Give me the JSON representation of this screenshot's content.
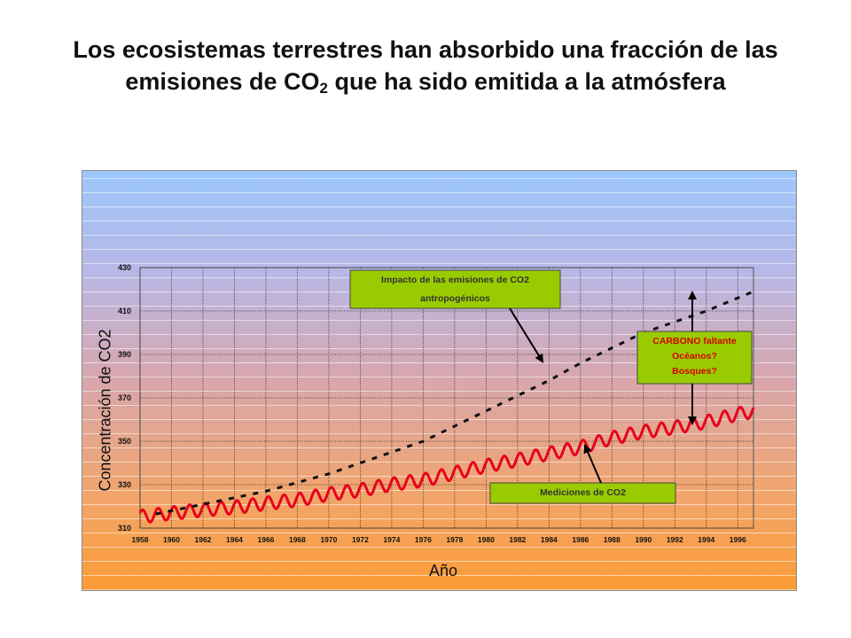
{
  "title": {
    "line1": "Los ecosistemas terrestres han absorbido una fracción de las",
    "line2_pre": "emisiones de CO",
    "line2_sub": "2",
    "line2_post": " que ha sido emitida a la atmósfera"
  },
  "chart_data": {
    "type": "line",
    "xlabel": "Año",
    "ylabel": "Concentración de CO2",
    "xlim": [
      1958,
      1997
    ],
    "ylim": [
      310,
      430
    ],
    "x_ticks": [
      "1958",
      "1960",
      "1962",
      "1964",
      "1966",
      "1968",
      "1970",
      "1972",
      "1974",
      "1976",
      "1978",
      "1980",
      "1982",
      "1984",
      "1986",
      "1988",
      "1990",
      "1992",
      "1994",
      "1996"
    ],
    "y_ticks": [
      "310",
      "330",
      "350",
      "370",
      "390",
      "410",
      "430"
    ],
    "grid": true,
    "series": [
      {
        "name": "Mediciones de CO2",
        "style": "solid",
        "color": "#e8001c",
        "seasonal_amplitude": 3,
        "x": [
          1958,
          1960,
          1962,
          1964,
          1966,
          1968,
          1970,
          1972,
          1974,
          1976,
          1978,
          1980,
          1982,
          1984,
          1986,
          1988,
          1990,
          1992,
          1994,
          1996,
          1997
        ],
        "values": [
          315.3,
          316.9,
          318.4,
          319.6,
          321.4,
          323.0,
          325.7,
          327.5,
          330.2,
          332.1,
          335.4,
          338.7,
          341.4,
          344.4,
          347.2,
          351.5,
          354.4,
          356.4,
          358.9,
          362.6,
          363.8
        ]
      },
      {
        "name": "Impacto de las emisiones de CO2 antropogénicos",
        "style": "dashed",
        "color": "#111111",
        "x": [
          1958,
          1960,
          1962,
          1964,
          1966,
          1968,
          1970,
          1972,
          1974,
          1976,
          1978,
          1980,
          1982,
          1984,
          1986,
          1988,
          1990,
          1992,
          1994,
          1996,
          1997
        ],
        "values": [
          315,
          318,
          321,
          324,
          327,
          331,
          335,
          340,
          345,
          350,
          357,
          364,
          371,
          378,
          386,
          393,
          400,
          405,
          410,
          416,
          419
        ]
      }
    ],
    "annotations": [
      {
        "id": "emisiones",
        "lines": [
          "Impacto de las emisiones de CO2",
          "antropogénicos"
        ],
        "bg": "#99cc00"
      },
      {
        "id": "mediciones",
        "lines": [
          "Mediciones de CO2"
        ],
        "bg": "#99cc00"
      },
      {
        "id": "faltante",
        "lines": [
          "CARBONO faltante",
          "Océanos?",
          "Bosques?"
        ],
        "bg": "#99cc00",
        "color": "#d40000"
      }
    ]
  }
}
